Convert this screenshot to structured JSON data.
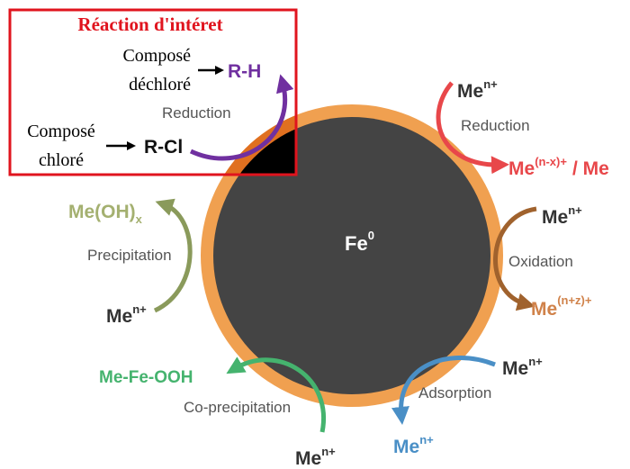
{
  "inset": {
    "title": "Réaction d'intéret",
    "product_label": [
      "Composé",
      "déchloré"
    ],
    "product": "R-H",
    "process": "Reduction",
    "reactant_label": [
      "Composé",
      "chloré"
    ],
    "reactant": "R-Cl"
  },
  "core": {
    "base": "Fe",
    "sup": "0"
  },
  "reactions": [
    {
      "process": "Reduction",
      "reactant": {
        "base": "Me",
        "sup": "n+"
      },
      "product": {
        "base": "Me",
        "sup": "(n-x)+",
        "suffix": "/ Me"
      }
    },
    {
      "process": "Oxidation",
      "reactant": {
        "base": "Me",
        "sup": "n+"
      },
      "product": {
        "base": "Me",
        "sup": "(n+z)+"
      }
    },
    {
      "process": "Adsorption",
      "reactant": {
        "base": "Me",
        "sup": "n+"
      },
      "product": {
        "base": "Me",
        "sup": "n+"
      }
    },
    {
      "process": "Co-precipitation",
      "reactant": {
        "base": "Me",
        "sup": "n+"
      },
      "product": {
        "base": "Me-Fe-OOH"
      }
    },
    {
      "process": "Precipitation",
      "reactant": {
        "base": "Me",
        "sup": "n+"
      },
      "product": {
        "base": "Me(OH)",
        "sub": "x"
      }
    }
  ]
}
